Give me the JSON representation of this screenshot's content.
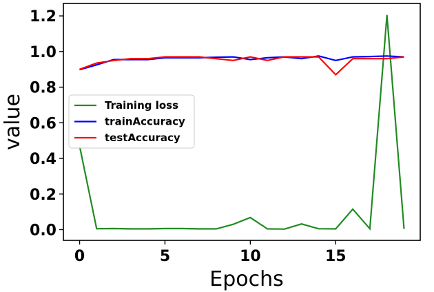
{
  "chart_data": {
    "type": "line",
    "title": "",
    "xlabel": "Epochs",
    "ylabel": "value",
    "xlim": [
      -0.95,
      19.95
    ],
    "ylim": [
      -0.06,
      1.27
    ],
    "x_ticks": [
      0,
      5,
      10,
      15
    ],
    "x_tick_labels": [
      "0",
      "5",
      "10",
      "15"
    ],
    "y_ticks": [
      0.0,
      0.2,
      0.4,
      0.6,
      0.8,
      1.0,
      1.2
    ],
    "y_tick_labels": [
      "0.0",
      "0.2",
      "0.4",
      "0.6",
      "0.8",
      "1.0",
      "1.2"
    ],
    "grid": false,
    "legend_position": "center-left",
    "x": [
      0,
      1,
      2,
      3,
      4,
      5,
      6,
      7,
      8,
      9,
      10,
      11,
      12,
      13,
      14,
      15,
      16,
      17,
      18,
      19
    ],
    "series": [
      {
        "name": "Training loss",
        "color": "#228b22",
        "values": [
          0.47,
          0.005,
          0.006,
          0.004,
          0.004,
          0.006,
          0.006,
          0.004,
          0.004,
          0.03,
          0.068,
          0.004,
          0.003,
          0.032,
          0.005,
          0.004,
          0.115,
          0.005,
          1.205,
          0.004
        ]
      },
      {
        "name": "trainAccuracy",
        "color": "#0000ff",
        "values": [
          0.898,
          0.925,
          0.955,
          0.955,
          0.955,
          0.965,
          0.965,
          0.965,
          0.968,
          0.97,
          0.955,
          0.965,
          0.97,
          0.96,
          0.975,
          0.95,
          0.97,
          0.972,
          0.975,
          0.97
        ]
      },
      {
        "name": "testAccuracy",
        "color": "#ff0000",
        "values": [
          0.9,
          0.935,
          0.95,
          0.96,
          0.96,
          0.97,
          0.97,
          0.97,
          0.96,
          0.95,
          0.97,
          0.95,
          0.97,
          0.97,
          0.97,
          0.87,
          0.96,
          0.96,
          0.96,
          0.97
        ]
      }
    ]
  }
}
